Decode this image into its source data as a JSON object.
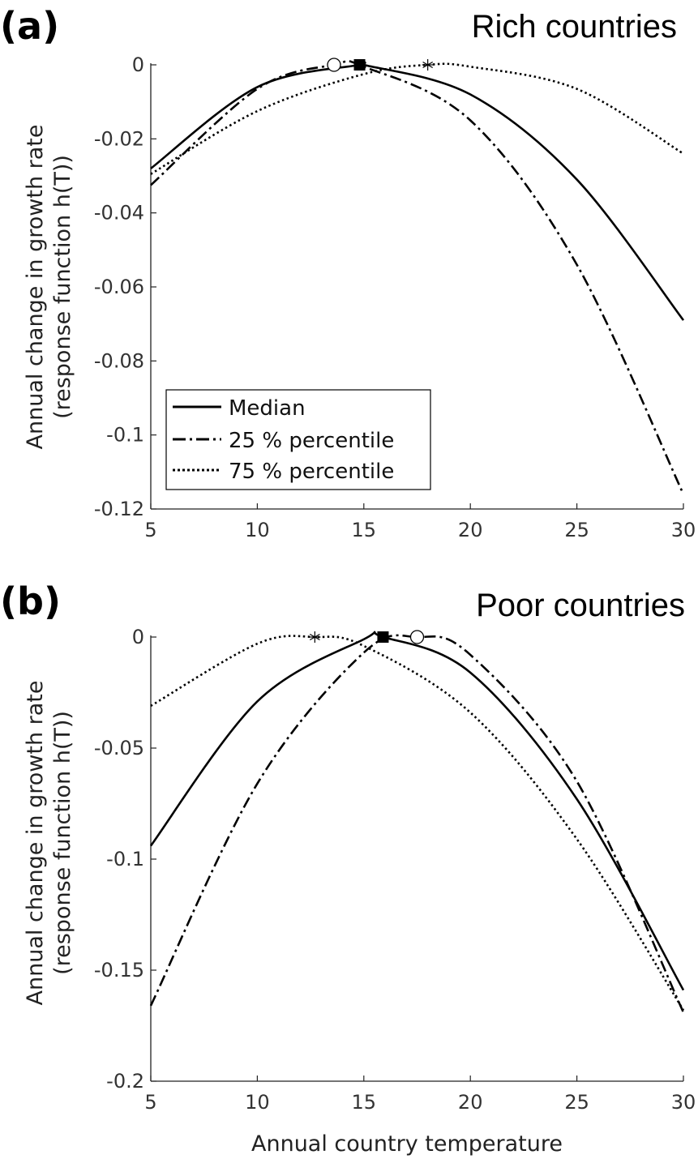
{
  "chart_data": [
    {
      "type": "line",
      "panel_label": "(a)",
      "title": "Rich countries",
      "xlabel": "",
      "ylabel_line1": "Annual change in growth rate",
      "ylabel_line2": "(response function h(T))",
      "xlim": [
        5,
        30
      ],
      "ylim": [
        -0.12,
        0
      ],
      "xticks": [
        5,
        10,
        15,
        20,
        25,
        30
      ],
      "yticks": [
        0,
        -0.02,
        -0.04,
        -0.06,
        -0.08,
        -0.1,
        -0.12
      ],
      "ytick_labels": [
        "0",
        "-0.02",
        "-0.04",
        "-0.06",
        "-0.08",
        "-0.1",
        "-0.12"
      ],
      "legend_position": "lower-left",
      "series": [
        {
          "name": "Median",
          "style": "solid",
          "peak_x": 14.8,
          "x": [
            5,
            10,
            15,
            20,
            25,
            30
          ],
          "y": [
            -0.028,
            -0.006,
            0,
            -0.008,
            -0.031,
            -0.069
          ],
          "marker": "square"
        },
        {
          "name": "25 % percentile",
          "style": "dashdot",
          "peak_x": 13.6,
          "x": [
            5,
            10,
            15,
            20,
            25,
            30
          ],
          "y": [
            -0.0325,
            -0.0065,
            -0.0005,
            -0.015,
            -0.054,
            -0.116
          ],
          "marker": "circle"
        },
        {
          "name": "75 % percentile",
          "style": "dotted",
          "peak_x": 18,
          "x": [
            5,
            10,
            15,
            20,
            25,
            30
          ],
          "y": [
            -0.0295,
            -0.0125,
            -0.0025,
            -0.0005,
            -0.0065,
            -0.024
          ],
          "marker": "star"
        }
      ]
    },
    {
      "type": "line",
      "panel_label": "(b)",
      "title": "Poor countries",
      "xlabel": "Annual country temperature",
      "ylabel_line1": "Annual change in growth rate",
      "ylabel_line2": "(response function h(T))",
      "xlim": [
        5,
        30
      ],
      "ylim": [
        -0.2,
        0
      ],
      "xticks": [
        5,
        10,
        15,
        20,
        25,
        30
      ],
      "yticks": [
        0,
        -0.05,
        -0.1,
        -0.15,
        -0.2
      ],
      "ytick_labels": [
        "0",
        "-0.05",
        "-0.1",
        "-0.15",
        "-0.2"
      ],
      "series": [
        {
          "name": "Median",
          "style": "solid",
          "peak_x": 15.9,
          "x": [
            5,
            10,
            15,
            20,
            25,
            30
          ],
          "y": [
            -0.094,
            -0.029,
            -0.001,
            -0.016,
            -0.073,
            -0.159
          ],
          "marker": "square"
        },
        {
          "name": "25 % percentile",
          "style": "dashdot",
          "peak_x": 17.5,
          "x": [
            5,
            10,
            15,
            20,
            25,
            30
          ],
          "y": [
            -0.166,
            -0.066,
            -0.007,
            -0.008,
            -0.065,
            -0.169
          ],
          "marker": "circle"
        },
        {
          "name": "75 % percentile",
          "style": "dotted",
          "peak_x": 12.7,
          "x": [
            5,
            10,
            15,
            20,
            25,
            30
          ],
          "y": [
            -0.031,
            -0.003,
            -0.004,
            -0.034,
            -0.091,
            -0.168
          ],
          "marker": "star"
        }
      ]
    }
  ]
}
